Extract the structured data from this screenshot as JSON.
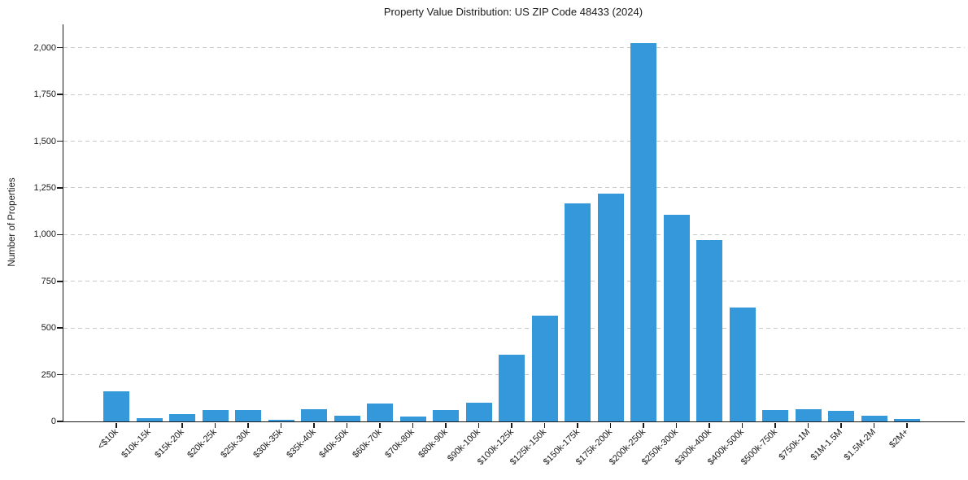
{
  "chart_data": {
    "type": "bar",
    "title": "Property Value Distribution: US ZIP Code 48433 (2024)",
    "xlabel": "",
    "ylabel": "Number of Properties",
    "categories": [
      "<$10k",
      "$10k-15k",
      "$15k-20k",
      "$20k-25k",
      "$25k-30k",
      "$30k-35k",
      "$35k-40k",
      "$40k-50k",
      "$60k-70k",
      "$70k-80k",
      "$80k-90k",
      "$90k-100k",
      "$100k-125k",
      "$125k-150k",
      "$150k-175k",
      "$175k-200k",
      "$200k-250k",
      "$250k-300k",
      "$300k-400k",
      "$400k-500k",
      "$500k-750k",
      "$750k-1M",
      "$1M-1.5M",
      "$1.5M-2M",
      "$2M+"
    ],
    "values": [
      160,
      18,
      40,
      62,
      62,
      10,
      65,
      30,
      95,
      25,
      60,
      100,
      358,
      565,
      1165,
      1220,
      2025,
      1105,
      970,
      610,
      60,
      65,
      55,
      30,
      15
    ],
    "ytick_values": [
      0,
      250,
      500,
      750,
      1000,
      1250,
      1500,
      1750,
      2000
    ],
    "ytick_labels": [
      "0",
      "250",
      "500",
      "750",
      "1,000",
      "1,250",
      "1,500",
      "1,750",
      "2,000"
    ],
    "ylim": [
      0,
      2125
    ],
    "grid": "horizontal-dashed",
    "legend_position": "none",
    "bar_color": "#3498db",
    "grid_color": "#c9c9c9",
    "axis_color": "#1a1a1a",
    "background_color": "#ffffff"
  }
}
